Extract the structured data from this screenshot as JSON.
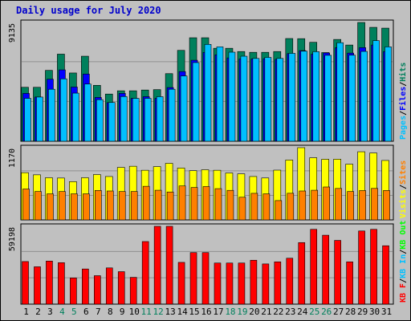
{
  "chart_data": {
    "type": "bar",
    "title": "Daily usage for July 2020",
    "days": [
      "1",
      "2",
      "3",
      "4",
      "5",
      "6",
      "7",
      "8",
      "9",
      "10",
      "11",
      "12",
      "13",
      "14",
      "15",
      "16",
      "17",
      "18",
      "19",
      "20",
      "21",
      "22",
      "23",
      "24",
      "25",
      "26",
      "27",
      "28",
      "29",
      "30",
      "31"
    ],
    "weekend_days": [
      "4",
      "5",
      "11",
      "12",
      "18",
      "19",
      "25",
      "26"
    ],
    "colors": {
      "hits": "#00805c",
      "files": "#0000ff",
      "pages": "#00c0ff",
      "visits": "#ffff00",
      "sites": "#ff8000",
      "kb_in": "#00c0ff",
      "kb_out": "#00ff00",
      "kb_f": "#ff0000",
      "weekend_label": "#00805c",
      "weekday_label": "#000000"
    },
    "panels": [
      {
        "id": "hits",
        "max_label": "9135",
        "ymax": 9135,
        "legend": [
          {
            "text": "Pages",
            "color": "#00c0ff"
          },
          {
            "text": "/",
            "color": "#000000"
          },
          {
            "text": "Files",
            "color": "#0000ff"
          },
          {
            "text": "/",
            "color": "#000000"
          },
          {
            "text": "Hits",
            "color": "#00805c"
          }
        ],
        "series": [
          {
            "name": "Hits",
            "color": "#00805c",
            "values": [
              4150,
              4150,
              5450,
              6700,
              5250,
              6540,
              4300,
              3630,
              3880,
              3880,
              3940,
              3970,
              5200,
              6990,
              7960,
              7960,
              7150,
              7150,
              6900,
              6840,
              6840,
              6900,
              7900,
              7890,
              7610,
              6820,
              7830,
              7400,
              9135,
              8760,
              8700
            ]
          },
          {
            "name": "Files",
            "color": "#0000ff",
            "values": [
              3680,
              3400,
              4770,
              5490,
              4170,
              5170,
              3370,
              2970,
              3680,
              3300,
              3430,
              3300,
              4130,
              5360,
              6230,
              6830,
              6650,
              6410,
              6330,
              6330,
              6350,
              6300,
              6740,
              6970,
              6700,
              6790,
              7200,
              6780,
              7200,
              7400,
              6900
            ]
          },
          {
            "name": "Pages",
            "color": "#00c0ff",
            "values": [
              3300,
              3400,
              4000,
              4800,
              3700,
              4400,
              3200,
              2980,
              3440,
              3300,
              3300,
              3430,
              4000,
              5020,
              6050,
              7450,
              7260,
              6850,
              6540,
              6370,
              6450,
              6370,
              6760,
              6930,
              6890,
              6610,
              7580,
              6620,
              6910,
              7740,
              7260
            ]
          }
        ]
      },
      {
        "id": "visits",
        "max_label": "1170",
        "ymax": 1170,
        "legend": [
          {
            "text": "Visits",
            "color": "#ffff00"
          },
          {
            "text": "/",
            "color": "#000000"
          },
          {
            "text": "Sites",
            "color": "#ff8000"
          }
        ],
        "series": [
          {
            "name": "Visits",
            "color": "#ffff00",
            "values": [
              765,
              730,
              683,
              678,
              620,
              683,
              734,
              703,
              850,
              869,
              804,
              863,
              916,
              840,
              797,
              812,
              804,
              760,
              746,
              703,
              679,
              806,
              970,
              1170,
              1007,
              982,
              983,
              903,
              1104,
              1084,
              963
            ]
          },
          {
            "name": "Sites",
            "color": "#ff8000",
            "values": [
              500,
              460,
              422,
              460,
              422,
              422,
              477,
              468,
              460,
              460,
              544,
              480,
              452,
              550,
              525,
              540,
              506,
              478,
              367,
              430,
              422,
              313,
              431,
              468,
              480,
              533,
              509,
              460,
              475,
              510,
              476
            ]
          }
        ]
      },
      {
        "id": "kbytes",
        "max_label": "59198",
        "ymax": 59198,
        "legend": [
          {
            "text": "KB F",
            "color": "#ff0000"
          },
          {
            "text": "/",
            "color": "#000000"
          },
          {
            "text": "KB In",
            "color": "#00c0ff"
          },
          {
            "text": "/",
            "color": "#000000"
          },
          {
            "text": "KB Out",
            "color": "#00ff00"
          }
        ],
        "series": [
          {
            "name": "KB F",
            "color": "#ff0000",
            "values": [
              32400,
              28420,
              32770,
              31540,
              19920,
              26750,
              21650,
              27570,
              24710,
              20380,
              47610,
              59198,
              59198,
              31770,
              39230,
              39230,
              31270,
              31270,
              31270,
              33400,
              30580,
              32180,
              34930,
              46820,
              56900,
              52430,
              48480,
              32180,
              55650,
              56900,
              44420
            ]
          }
        ]
      }
    ]
  }
}
